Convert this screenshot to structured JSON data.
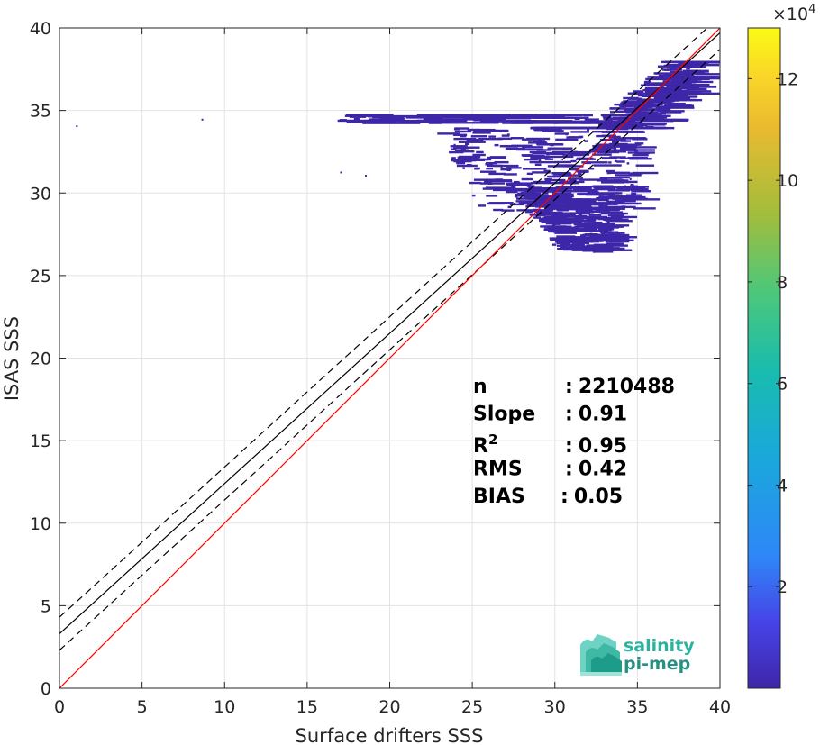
{
  "chart_data": {
    "type": "heatmap",
    "xlabel": "Surface drifters SSS",
    "ylabel": "ISAS SSS",
    "xlim": [
      0,
      40
    ],
    "ylim": [
      0,
      40
    ],
    "xticks": [
      "0",
      "5",
      "10",
      "15",
      "20",
      "25",
      "30",
      "35",
      "40"
    ],
    "yticks": [
      "0",
      "5",
      "10",
      "15",
      "20",
      "25",
      "30",
      "35",
      "40"
    ],
    "grid": true,
    "colorbar": {
      "exponent_label": "×10",
      "exponent": "4",
      "ticks": [
        "2",
        "4",
        "6",
        "8",
        "10",
        "12"
      ],
      "tick_values": [
        2,
        4,
        6,
        8,
        10,
        12
      ],
      "range": [
        0,
        13
      ],
      "colormap": [
        "#3e26a8",
        "#4743e8",
        "#2e87f7",
        "#1aa8db",
        "#19bcae",
        "#4cc77b",
        "#a3bd3b",
        "#eaba30",
        "#fbd727",
        "#f9fb14"
      ]
    },
    "lines": {
      "identity": {
        "slope": 1,
        "intercept": 0,
        "color": "#ff0000"
      },
      "fit": {
        "slope": 0.91,
        "intercept": 3.3,
        "color": "#000000"
      },
      "fit_upper": {
        "slope": 0.91,
        "intercept": 4.3,
        "style": "dashed"
      },
      "fit_lower": {
        "slope": 0.91,
        "intercept": 2.3,
        "style": "dashed"
      }
    },
    "stats": [
      {
        "label": "n",
        "sep": ":",
        "value": "2210488"
      },
      {
        "label": "Slope",
        "sep": ":",
        "value": "0.91"
      },
      {
        "label": "R",
        "sup": "2",
        "sep": ":",
        "value": "0.95"
      },
      {
        "label": "RMS",
        "sep": ":",
        "value": "0.42"
      },
      {
        "label": "BIAS",
        "sep": ":",
        "value": "0.05"
      }
    ],
    "density_color": "#3e26a8",
    "density_clusters": [
      {
        "x": [
          28.5,
          38.5
        ],
        "y": [
          34.0,
          38.0
        ]
      },
      {
        "x": [
          16.5,
          34.0
        ],
        "y": [
          34.3,
          34.8
        ]
      },
      {
        "x": [
          22.5,
          35.0
        ],
        "y": [
          29.0,
          34.0
        ]
      },
      {
        "x": [
          27.0,
          33.5
        ],
        "y": [
          26.5,
          30.5
        ]
      }
    ]
  },
  "logo": {
    "line1": "salinity",
    "line2": "pi-mep"
  }
}
